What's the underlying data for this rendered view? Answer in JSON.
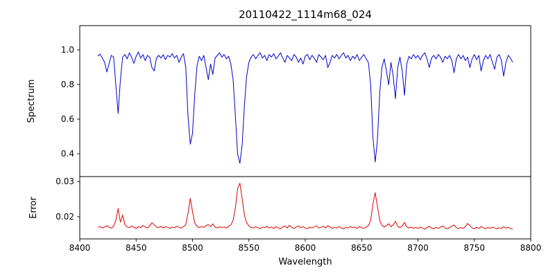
{
  "figure": {
    "title": "20110422_1114m68_024",
    "xlabel": "Wavelength",
    "background_color": "#ffffff",
    "xticks": [
      8400,
      8450,
      8500,
      8550,
      8600,
      8650,
      8700,
      8750,
      8800
    ],
    "xtick_labels": [
      "8400",
      "8450",
      "8500",
      "8550",
      "8600",
      "8650",
      "8700",
      "8750",
      "8800"
    ]
  },
  "chart_data": [
    {
      "type": "line",
      "name": "spectrum",
      "ylabel": "Spectrum",
      "color": "#0000cc",
      "grid": false,
      "legend": "none",
      "xlim": [
        8400,
        8800
      ],
      "ylim": [
        0.268,
        1.14
      ],
      "yticks": [
        0.4,
        0.6,
        0.8,
        1.0
      ],
      "ytick_labels": [
        "0.4",
        "0.6",
        "0.8",
        "1.0"
      ],
      "x_start": 8416,
      "x_step": 2,
      "absorption_lines": [
        {
          "center": 8434,
          "min_value": 0.63
        },
        {
          "center": 8498,
          "min_value": 0.45
        },
        {
          "center": 8542,
          "min_value": 0.34
        },
        {
          "center": 8662,
          "min_value": 0.35
        }
      ],
      "y": [
        0.965,
        0.975,
        0.952,
        0.928,
        0.872,
        0.921,
        0.968,
        0.958,
        0.798,
        0.632,
        0.825,
        0.958,
        0.974,
        0.948,
        0.983,
        0.957,
        0.922,
        0.963,
        0.988,
        0.952,
        0.973,
        0.938,
        0.968,
        0.957,
        0.898,
        0.878,
        0.952,
        0.968,
        0.953,
        0.972,
        0.944,
        0.968,
        0.958,
        0.978,
        0.953,
        0.968,
        0.928,
        0.958,
        0.978,
        0.898,
        0.618,
        0.455,
        0.518,
        0.748,
        0.908,
        0.963,
        0.938,
        0.968,
        0.898,
        0.828,
        0.918,
        0.858,
        0.952,
        0.968,
        0.983,
        0.958,
        0.973,
        0.948,
        0.963,
        0.918,
        0.828,
        0.618,
        0.398,
        0.345,
        0.448,
        0.678,
        0.848,
        0.928,
        0.958,
        0.973,
        0.948,
        0.968,
        0.983,
        0.953,
        0.968,
        0.938,
        0.973,
        0.958,
        0.978,
        0.948,
        0.963,
        0.983,
        0.953,
        0.928,
        0.968,
        0.953,
        0.938,
        0.973,
        0.958,
        0.928,
        0.953,
        0.918,
        0.963,
        0.973,
        0.943,
        0.968,
        0.953,
        0.928,
        0.973,
        0.958,
        0.943,
        0.968,
        0.898,
        0.928,
        0.968,
        0.953,
        0.973,
        0.948,
        0.968,
        0.983,
        0.953,
        0.968,
        0.938,
        0.963,
        0.948,
        0.973,
        0.938,
        0.958,
        0.973,
        0.948,
        0.928,
        0.798,
        0.498,
        0.352,
        0.478,
        0.748,
        0.898,
        0.948,
        0.878,
        0.798,
        0.928,
        0.848,
        0.718,
        0.898,
        0.958,
        0.878,
        0.738,
        0.918,
        0.963,
        0.948,
        0.973,
        0.953,
        0.968,
        0.943,
        0.968,
        0.983,
        0.948,
        0.898,
        0.953,
        0.968,
        0.948,
        0.973,
        0.958,
        0.928,
        0.963,
        0.948,
        0.968,
        0.938,
        0.868,
        0.948,
        0.973,
        0.948,
        0.968,
        0.938,
        0.958,
        0.898,
        0.948,
        0.973,
        0.943,
        0.968,
        0.878,
        0.938,
        0.968,
        0.948,
        0.973,
        0.928,
        0.888,
        0.958,
        0.973,
        0.938,
        0.848,
        0.928,
        0.968,
        0.953,
        0.928
      ]
    },
    {
      "type": "line",
      "name": "error",
      "ylabel": "Error",
      "color": "#dd0000",
      "grid": false,
      "legend": "none",
      "xlim": [
        8400,
        8800
      ],
      "ylim": [
        0.01373,
        0.03137
      ],
      "yticks": [
        0.02,
        0.03
      ],
      "ytick_labels": [
        "0.02",
        "0.03"
      ],
      "x_start": 8416,
      "x_step": 2,
      "peaks": [
        {
          "center": 8434,
          "max_value": 0.0224
        },
        {
          "center": 8498,
          "max_value": 0.0252
        },
        {
          "center": 8542,
          "max_value": 0.0295
        },
        {
          "center": 8662,
          "max_value": 0.0268
        }
      ],
      "y": [
        0.017,
        0.0172,
        0.0168,
        0.0171,
        0.0175,
        0.017,
        0.0168,
        0.0173,
        0.019,
        0.0224,
        0.0185,
        0.0205,
        0.0178,
        0.0171,
        0.0169,
        0.0174,
        0.017,
        0.0167,
        0.0172,
        0.0169,
        0.0175,
        0.0171,
        0.0168,
        0.0174,
        0.0183,
        0.0177,
        0.0171,
        0.0169,
        0.0173,
        0.0168,
        0.0172,
        0.017,
        0.0167,
        0.0171,
        0.0169,
        0.0173,
        0.017,
        0.0168,
        0.0172,
        0.0178,
        0.021,
        0.0252,
        0.0215,
        0.0182,
        0.0173,
        0.0169,
        0.0172,
        0.017,
        0.0175,
        0.0178,
        0.0172,
        0.018,
        0.0171,
        0.0168,
        0.0172,
        0.0169,
        0.0171,
        0.0168,
        0.0173,
        0.0177,
        0.019,
        0.0225,
        0.028,
        0.0295,
        0.0252,
        0.0205,
        0.0183,
        0.0174,
        0.017,
        0.0168,
        0.0172,
        0.0169,
        0.0166,
        0.0171,
        0.0169,
        0.0173,
        0.0168,
        0.0171,
        0.0167,
        0.0172,
        0.0169,
        0.0166,
        0.0171,
        0.0174,
        0.0168,
        0.0176,
        0.017,
        0.0167,
        0.0171,
        0.0174,
        0.0169,
        0.0172,
        0.0168,
        0.0166,
        0.0171,
        0.0168,
        0.0172,
        0.0174,
        0.0168,
        0.017,
        0.0173,
        0.0168,
        0.0175,
        0.0171,
        0.0167,
        0.017,
        0.0168,
        0.0172,
        0.0169,
        0.0166,
        0.017,
        0.0168,
        0.0172,
        0.0169,
        0.0171,
        0.0167,
        0.0172,
        0.0169,
        0.0167,
        0.0171,
        0.0175,
        0.019,
        0.0235,
        0.0268,
        0.023,
        0.019,
        0.0176,
        0.0171,
        0.0175,
        0.018,
        0.0172,
        0.0177,
        0.0187,
        0.0173,
        0.0169,
        0.0174,
        0.0184,
        0.0172,
        0.0168,
        0.0171,
        0.0167,
        0.017,
        0.0167,
        0.0171,
        0.0168,
        0.0165,
        0.017,
        0.0173,
        0.0168,
        0.0166,
        0.017,
        0.0167,
        0.0171,
        0.0174,
        0.0168,
        0.0166,
        0.017,
        0.0173,
        0.0177,
        0.0169,
        0.0166,
        0.017,
        0.0167,
        0.0172,
        0.0181,
        0.0175,
        0.0168,
        0.0166,
        0.017,
        0.0167,
        0.0172,
        0.0169,
        0.0166,
        0.017,
        0.0167,
        0.0171,
        0.0168,
        0.0166,
        0.0169,
        0.0167,
        0.0172,
        0.0168,
        0.017,
        0.0167,
        0.0165
      ]
    }
  ]
}
